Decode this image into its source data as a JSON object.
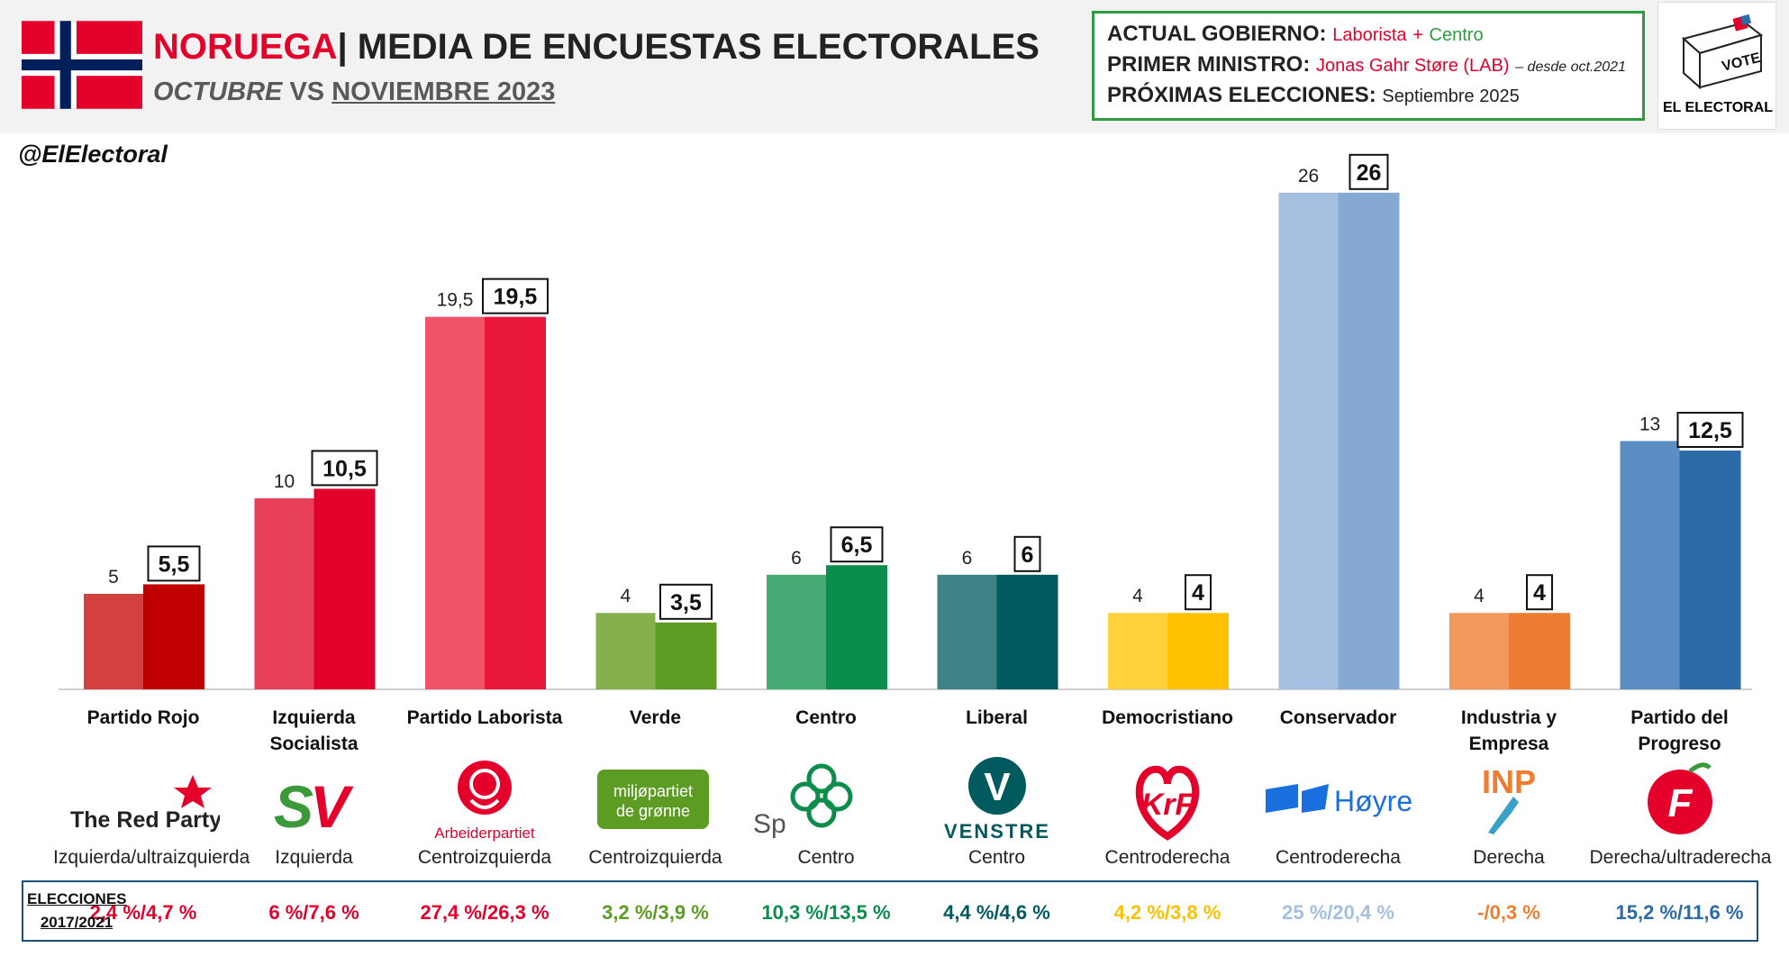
{
  "header": {
    "country": "NORUEGA",
    "separator": "|",
    "title": "MEDIA DE ENCUESTAS ELECTORALES",
    "subtitle_from": "OCTUBRE",
    "subtitle_vs": "VS",
    "subtitle_to": "NOVIEMBRE 2023",
    "flag_colors": {
      "red": "#e4002b",
      "white": "#ffffff",
      "blue": "#00205b"
    }
  },
  "government": {
    "gov_label": "ACTUAL GOBIERNO:",
    "gov_party1": "Laborista",
    "gov_plus": "+",
    "gov_party2": "Centro",
    "pm_label": "PRIMER MINISTRO:",
    "pm_name": "Jonas Gahr Støre (LAB)",
    "pm_since": "– desde oct.2021",
    "next_label": "PRÓXIMAS ELECCIONES:",
    "next_value": "Septiembre 2025"
  },
  "brand": {
    "vote": "VOTE",
    "name": "EL ELECTORAL",
    "handle": "@ElElectoral"
  },
  "chart_data": {
    "type": "bar",
    "categories": [
      "Partido Rojo",
      "Izquierda Socialista",
      "Partido Laborista",
      "Verde",
      "Centro",
      "Liberal",
      "Democristiano",
      "Conservador",
      "Industria y Empresa",
      "Partido del Progreso"
    ],
    "series": [
      {
        "name": "OCTUBRE",
        "values": [
          5,
          10,
          19.5,
          4,
          6,
          6,
          4,
          26,
          4,
          13
        ],
        "labels": [
          "5",
          "10",
          "19,5",
          "4",
          "6",
          "6",
          "4",
          "26",
          "4",
          "13"
        ]
      },
      {
        "name": "NOVIEMBRE 2023",
        "values": [
          5.5,
          10.5,
          19.5,
          3.5,
          6.5,
          6,
          4,
          26,
          4,
          12.5
        ],
        "labels": [
          "5,5",
          "10,5",
          "19,5",
          "3,5",
          "6,5",
          "6",
          "4",
          "26",
          "4",
          "12,5"
        ]
      }
    ],
    "colors_old": [
      "#d24040",
      "#e8405a",
      "#f0546a",
      "#85b04e",
      "#46ab74",
      "#3f8286",
      "#ffd23d",
      "#a4bfdf",
      "#f2985c",
      "#5b8ec2"
    ],
    "colors_new": [
      "#c00000",
      "#e0002a",
      "#e8173a",
      "#5c9c22",
      "#0b8e4c",
      "#005a5e",
      "#ffc000",
      "#86a9d2",
      "#ee7d31",
      "#2c6aa8"
    ],
    "ylim": [
      0,
      27
    ]
  },
  "parties": [
    {
      "name": "Partido Rojo",
      "ideology": "Izquierda/ultraizquierda",
      "result": "2,4 %/4,7 %",
      "color": "#e4002b",
      "logo": "The Red Party"
    },
    {
      "name": "Izquierda Socialista",
      "ideology": "Izquierda",
      "result": "6 %/7,6 %",
      "color": "#e4002b",
      "logo": "SV"
    },
    {
      "name": "Partido Laborista",
      "ideology": "Centroizquierda",
      "result": "27,4 %/26,3 %",
      "color": "#e4002b",
      "logo": "Arbeiderpartiet"
    },
    {
      "name": "Verde",
      "ideology": "Centroizquierda",
      "result": "3,2 %/3,9 %",
      "color": "#5c9c22",
      "logo": "miljøpartiet de grønne"
    },
    {
      "name": "Centro",
      "ideology": "Centro",
      "result": "10,3 %/13,5 %",
      "color": "#0b8e4c",
      "logo": "Sp"
    },
    {
      "name": "Liberal",
      "ideology": "Centro",
      "result": "4,4 %/4,6 %",
      "color": "#005a5e",
      "logo": "VENSTRE"
    },
    {
      "name": "Democristiano",
      "ideology": "Centroderecha",
      "result": "4,2 %/3,8 %",
      "color": "#ffc000",
      "logo": "KrF"
    },
    {
      "name": "Conservador",
      "ideology": "Centroderecha",
      "result": "25 %/20,4 %",
      "color": "#a4bfdf",
      "logo": "Høyre"
    },
    {
      "name": "Industria y Empresa",
      "ideology": "Derecha",
      "result": "-/0,3 %",
      "color": "#ee7d31",
      "logo": "INP"
    },
    {
      "name": "Partido del Progreso",
      "ideology": "Derecha/ultraderecha",
      "result": "15,2 %/11,6 %",
      "color": "#2c6aa8",
      "logo": "F"
    }
  ],
  "results_label_1": "ELECCIONES",
  "results_label_2": "2017/2021"
}
